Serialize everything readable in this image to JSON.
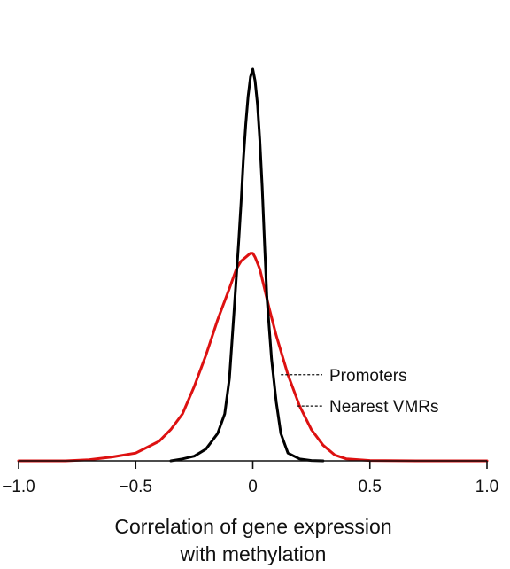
{
  "chart_data": {
    "type": "line",
    "title": "",
    "xlabel": [
      "Correlation of gene expression",
      "with methylation"
    ],
    "ylabel": "",
    "xlim": [
      -1.0,
      1.0
    ],
    "ylim": [
      0,
      1.0
    ],
    "x_ticks": [
      -1.0,
      -0.5,
      0,
      0.5,
      1.0
    ],
    "x_tick_labels": [
      "−1.0",
      "−0.5",
      "0",
      "0.5",
      "1.0"
    ],
    "y_axis_visible": false,
    "grid": false,
    "legend": "none",
    "annotations": [
      {
        "text": "Promoters",
        "series": "Promoters",
        "x": 0.12,
        "y": 0.22
      },
      {
        "text": "Nearest VMRs",
        "series": "Nearest VMRs",
        "x": 0.19,
        "y": 0.14
      }
    ],
    "series": [
      {
        "name": "Promoters",
        "color": "#000000",
        "x": [
          -0.35,
          -0.3,
          -0.25,
          -0.2,
          -0.15,
          -0.12,
          -0.1,
          -0.08,
          -0.06,
          -0.05,
          -0.04,
          -0.03,
          -0.02,
          -0.01,
          0.0,
          0.01,
          0.02,
          0.03,
          0.04,
          0.05,
          0.06,
          0.08,
          0.1,
          0.12,
          0.15,
          0.2,
          0.25,
          0.3
        ],
        "y": [
          0.0,
          0.005,
          0.012,
          0.03,
          0.07,
          0.12,
          0.21,
          0.38,
          0.56,
          0.66,
          0.77,
          0.86,
          0.93,
          0.98,
          1.0,
          0.97,
          0.91,
          0.82,
          0.7,
          0.56,
          0.42,
          0.26,
          0.15,
          0.07,
          0.02,
          0.005,
          0.001,
          0.0
        ]
      },
      {
        "name": "Nearest VMRs",
        "color": "#dd1111",
        "x": [
          -1.0,
          -0.8,
          -0.7,
          -0.6,
          -0.5,
          -0.4,
          -0.35,
          -0.3,
          -0.25,
          -0.2,
          -0.15,
          -0.1,
          -0.07,
          -0.05,
          -0.03,
          -0.01,
          0.0,
          0.01,
          0.03,
          0.05,
          0.07,
          0.1,
          0.15,
          0.2,
          0.25,
          0.3,
          0.35,
          0.4,
          0.5,
          0.7,
          1.0
        ],
        "y": [
          0.0,
          0.0,
          0.003,
          0.01,
          0.02,
          0.05,
          0.08,
          0.12,
          0.19,
          0.27,
          0.36,
          0.44,
          0.49,
          0.51,
          0.52,
          0.53,
          0.53,
          0.52,
          0.49,
          0.44,
          0.39,
          0.32,
          0.22,
          0.14,
          0.08,
          0.04,
          0.015,
          0.005,
          0.001,
          0.0,
          0.0
        ]
      }
    ]
  }
}
